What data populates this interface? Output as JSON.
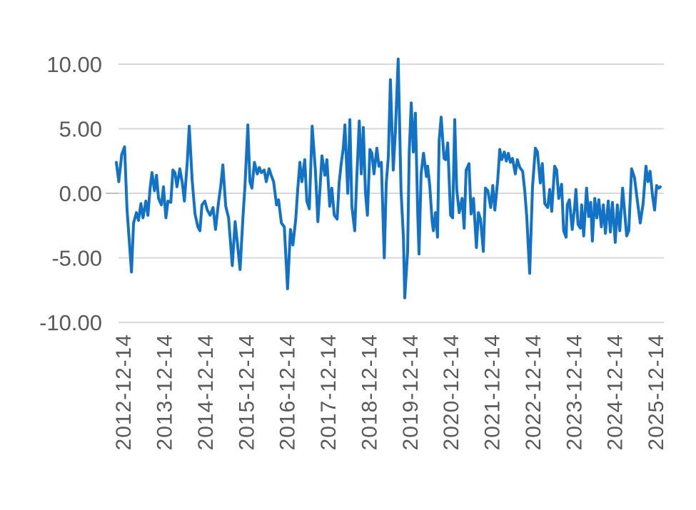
{
  "chart_data": {
    "type": "line",
    "title": "",
    "xlabel": "",
    "ylabel": "",
    "grid": true,
    "legend": false,
    "ylim": [
      -10,
      10
    ],
    "y_ticks": [
      10,
      5,
      0,
      -5,
      -10
    ],
    "y_tick_labels": [
      "10.00",
      "5.00",
      "0.00",
      "-5.00",
      "-10.00"
    ],
    "x_tick_labels": [
      "2012-12-14",
      "2013-12-14",
      "2014-12-14",
      "2015-12-14",
      "2016-12-14",
      "2017-12-14",
      "2018-12-14",
      "2019-12-14",
      "2020-12-14",
      "2021-12-14",
      "2022-12-14",
      "2023-12-14",
      "2024-12-14",
      "2025-12-14"
    ],
    "x_tick_years": [
      2012.96,
      2013.96,
      2014.96,
      2015.96,
      2016.96,
      2017.96,
      2018.96,
      2019.96,
      2020.96,
      2021.96,
      2022.96,
      2023.96,
      2024.96,
      2025.96
    ],
    "x_range": [
      2012.8,
      2026.08
    ],
    "x_tick_label_rotation_deg": -90,
    "x": [
      2012.8,
      2012.86,
      2012.93,
      2013.0,
      2013.06,
      2013.17,
      2013.22,
      2013.29,
      2013.34,
      2013.4,
      2013.45,
      2013.52,
      2013.57,
      2013.62,
      2013.67,
      2013.73,
      2013.78,
      2013.83,
      2013.9,
      2013.95,
      2014.01,
      2014.06,
      2014.13,
      2014.18,
      2014.23,
      2014.28,
      2014.35,
      2014.41,
      2014.46,
      2014.53,
      2014.58,
      2014.65,
      2014.72,
      2014.79,
      2014.84,
      2014.89,
      2014.96,
      2015.02,
      2015.09,
      2015.16,
      2015.22,
      2015.29,
      2015.35,
      2015.4,
      2015.47,
      2015.54,
      2015.63,
      2015.7,
      2015.76,
      2015.82,
      2015.89,
      2015.94,
      2016.01,
      2016.06,
      2016.11,
      2016.17,
      2016.24,
      2016.29,
      2016.34,
      2016.41,
      2016.46,
      2016.53,
      2016.58,
      2016.64,
      2016.71,
      2016.76,
      2016.83,
      2016.9,
      2016.98,
      2017.05,
      2017.11,
      2017.18,
      2017.23,
      2017.28,
      2017.33,
      2017.4,
      2017.45,
      2017.51,
      2017.58,
      2017.66,
      2017.72,
      2017.77,
      2017.82,
      2017.89,
      2017.94,
      2018.01,
      2018.06,
      2018.12,
      2018.19,
      2018.24,
      2018.29,
      2018.34,
      2018.38,
      2018.45,
      2018.5,
      2018.55,
      2018.62,
      2018.67,
      2018.73,
      2018.78,
      2018.83,
      2018.88,
      2018.93,
      2018.99,
      2019.04,
      2019.09,
      2019.16,
      2019.21,
      2019.27,
      2019.34,
      2019.39,
      2019.44,
      2019.49,
      2019.56,
      2019.61,
      2019.68,
      2019.75,
      2019.81,
      2019.84,
      2019.91,
      2019.95,
      2020.0,
      2020.05,
      2020.1,
      2020.16,
      2020.19,
      2020.24,
      2020.3,
      2020.37,
      2020.4,
      2020.45,
      2020.51,
      2020.54,
      2020.59,
      2020.64,
      2020.68,
      2020.73,
      2020.8,
      2020.84,
      2020.89,
      2020.96,
      2021.01,
      2021.06,
      2021.11,
      2021.17,
      2021.24,
      2021.29,
      2021.34,
      2021.41,
      2021.46,
      2021.52,
      2021.59,
      2021.64,
      2021.69,
      2021.76,
      2021.81,
      2021.87,
      2021.94,
      2021.99,
      2022.04,
      2022.11,
      2022.16,
      2022.21,
      2022.27,
      2022.32,
      2022.37,
      2022.42,
      2022.47,
      2022.54,
      2022.59,
      2022.65,
      2022.72,
      2022.77,
      2022.82,
      2022.89,
      2022.96,
      2023.03,
      2023.08,
      2023.15,
      2023.2,
      2023.26,
      2023.33,
      2023.38,
      2023.43,
      2023.5,
      2023.55,
      2023.6,
      2023.67,
      2023.72,
      2023.78,
      2023.81,
      2023.86,
      2023.93,
      2023.99,
      2024.02,
      2024.07,
      2024.13,
      2024.16,
      2024.21,
      2024.28,
      2024.33,
      2024.38,
      2024.42,
      2024.48,
      2024.53,
      2024.58,
      2024.64,
      2024.69,
      2024.74,
      2024.81,
      2024.86,
      2024.91,
      2024.98,
      2025.03,
      2025.09,
      2025.16,
      2025.21,
      2025.26,
      2025.31,
      2025.38,
      2025.45,
      2025.52,
      2025.59,
      2025.66,
      2025.73,
      2025.78,
      2025.83,
      2025.89,
      2025.94,
      2025.99,
      2026.04,
      2026.08
    ],
    "values": [
      2.4,
      0.9,
      3.0,
      3.6,
      -1.2,
      -6.1,
      -2.3,
      -1.5,
      -2.1,
      -0.8,
      -1.9,
      -0.6,
      -1.7,
      0.3,
      1.6,
      0.2,
      1.4,
      -0.4,
      -0.9,
      0.5,
      -1.9,
      -0.6,
      -0.7,
      1.8,
      1.6,
      0.5,
      1.9,
      0.8,
      -0.6,
      2.4,
      5.2,
      1.0,
      -1.6,
      -2.6,
      -2.9,
      -0.9,
      -0.6,
      -1.3,
      -1.7,
      -1.1,
      -2.8,
      -0.8,
      0.6,
      2.2,
      -1.0,
      -1.9,
      -5.6,
      -2.2,
      -4.0,
      -5.9,
      -1.9,
      0.6,
      5.3,
      0.9,
      0.4,
      2.4,
      1.5,
      2.0,
      1.6,
      1.8,
      0.9,
      1.9,
      1.4,
      0.9,
      -0.9,
      -0.5,
      -2.3,
      -2.6,
      -7.4,
      -2.8,
      -4.0,
      -2.0,
      0.4,
      2.4,
      0.9,
      2.6,
      -0.6,
      -1.2,
      5.2,
      1.7,
      -2.2,
      0.3,
      2.9,
      1.4,
      2.6,
      -1.0,
      0.4,
      -1.7,
      -2.0,
      0.8,
      2.3,
      3.5,
      5.3,
      0.0,
      5.7,
      -1.0,
      -2.9,
      1.2,
      5.6,
      1.5,
      5.1,
      0.1,
      -1.7,
      3.4,
      3.1,
      1.5,
      3.5,
      2.1,
      2.4,
      -5.0,
      0.8,
      2.8,
      8.8,
      1.8,
      4.7,
      10.4,
      0.2,
      -3.5,
      -8.1,
      -4.5,
      3.2,
      7.0,
      3.2,
      6.2,
      -1.8,
      -4.7,
      1.5,
      3.1,
      1.3,
      2.1,
      0.6,
      -2.2,
      -2.9,
      -1.5,
      -3.4,
      4.1,
      5.9,
      2.7,
      2.6,
      3.9,
      -1.7,
      -1.9,
      5.7,
      0.3,
      -1.5,
      -0.4,
      -2.7,
      1.8,
      2.3,
      -1.6,
      -0.4,
      -4.2,
      -1.5,
      -2.0,
      -4.5,
      0.4,
      0.2,
      -1.1,
      0.6,
      -1.3,
      1.0,
      3.4,
      2.6,
      3.2,
      2.5,
      3.1,
      2.4,
      2.7,
      1.5,
      2.6,
      2.0,
      1.7,
      0.2,
      -1.8,
      -6.2,
      0.5,
      3.5,
      3.2,
      0.8,
      2.3,
      -0.8,
      -1.1,
      0.3,
      -1.4,
      2.1,
      1.8,
      -0.4,
      0.7,
      -2.9,
      -3.4,
      -0.9,
      -0.5,
      -2.8,
      -1.0,
      0.3,
      -2.4,
      -2.7,
      -0.9,
      -3.3,
      0.4,
      -1.8,
      -0.7,
      -3.7,
      -0.4,
      -1.9,
      -0.5,
      -2.6,
      -0.9,
      -3.1,
      -0.6,
      -3.0,
      -0.7,
      -3.8,
      -0.9,
      -2.9,
      0.4,
      -1.5,
      -3.3,
      -2.9,
      1.9,
      1.2,
      -0.6,
      -2.3,
      -0.8,
      2.1,
      0.9,
      1.7,
      -0.2,
      -1.3,
      0.6,
      0.4,
      0.5
    ]
  },
  "colors": {
    "line": "#1272C5",
    "grid": "#D9D9D9",
    "zero_tick": "#BFBFBF",
    "axis_text": "#5A5A5A",
    "background": "#FFFFFF"
  }
}
